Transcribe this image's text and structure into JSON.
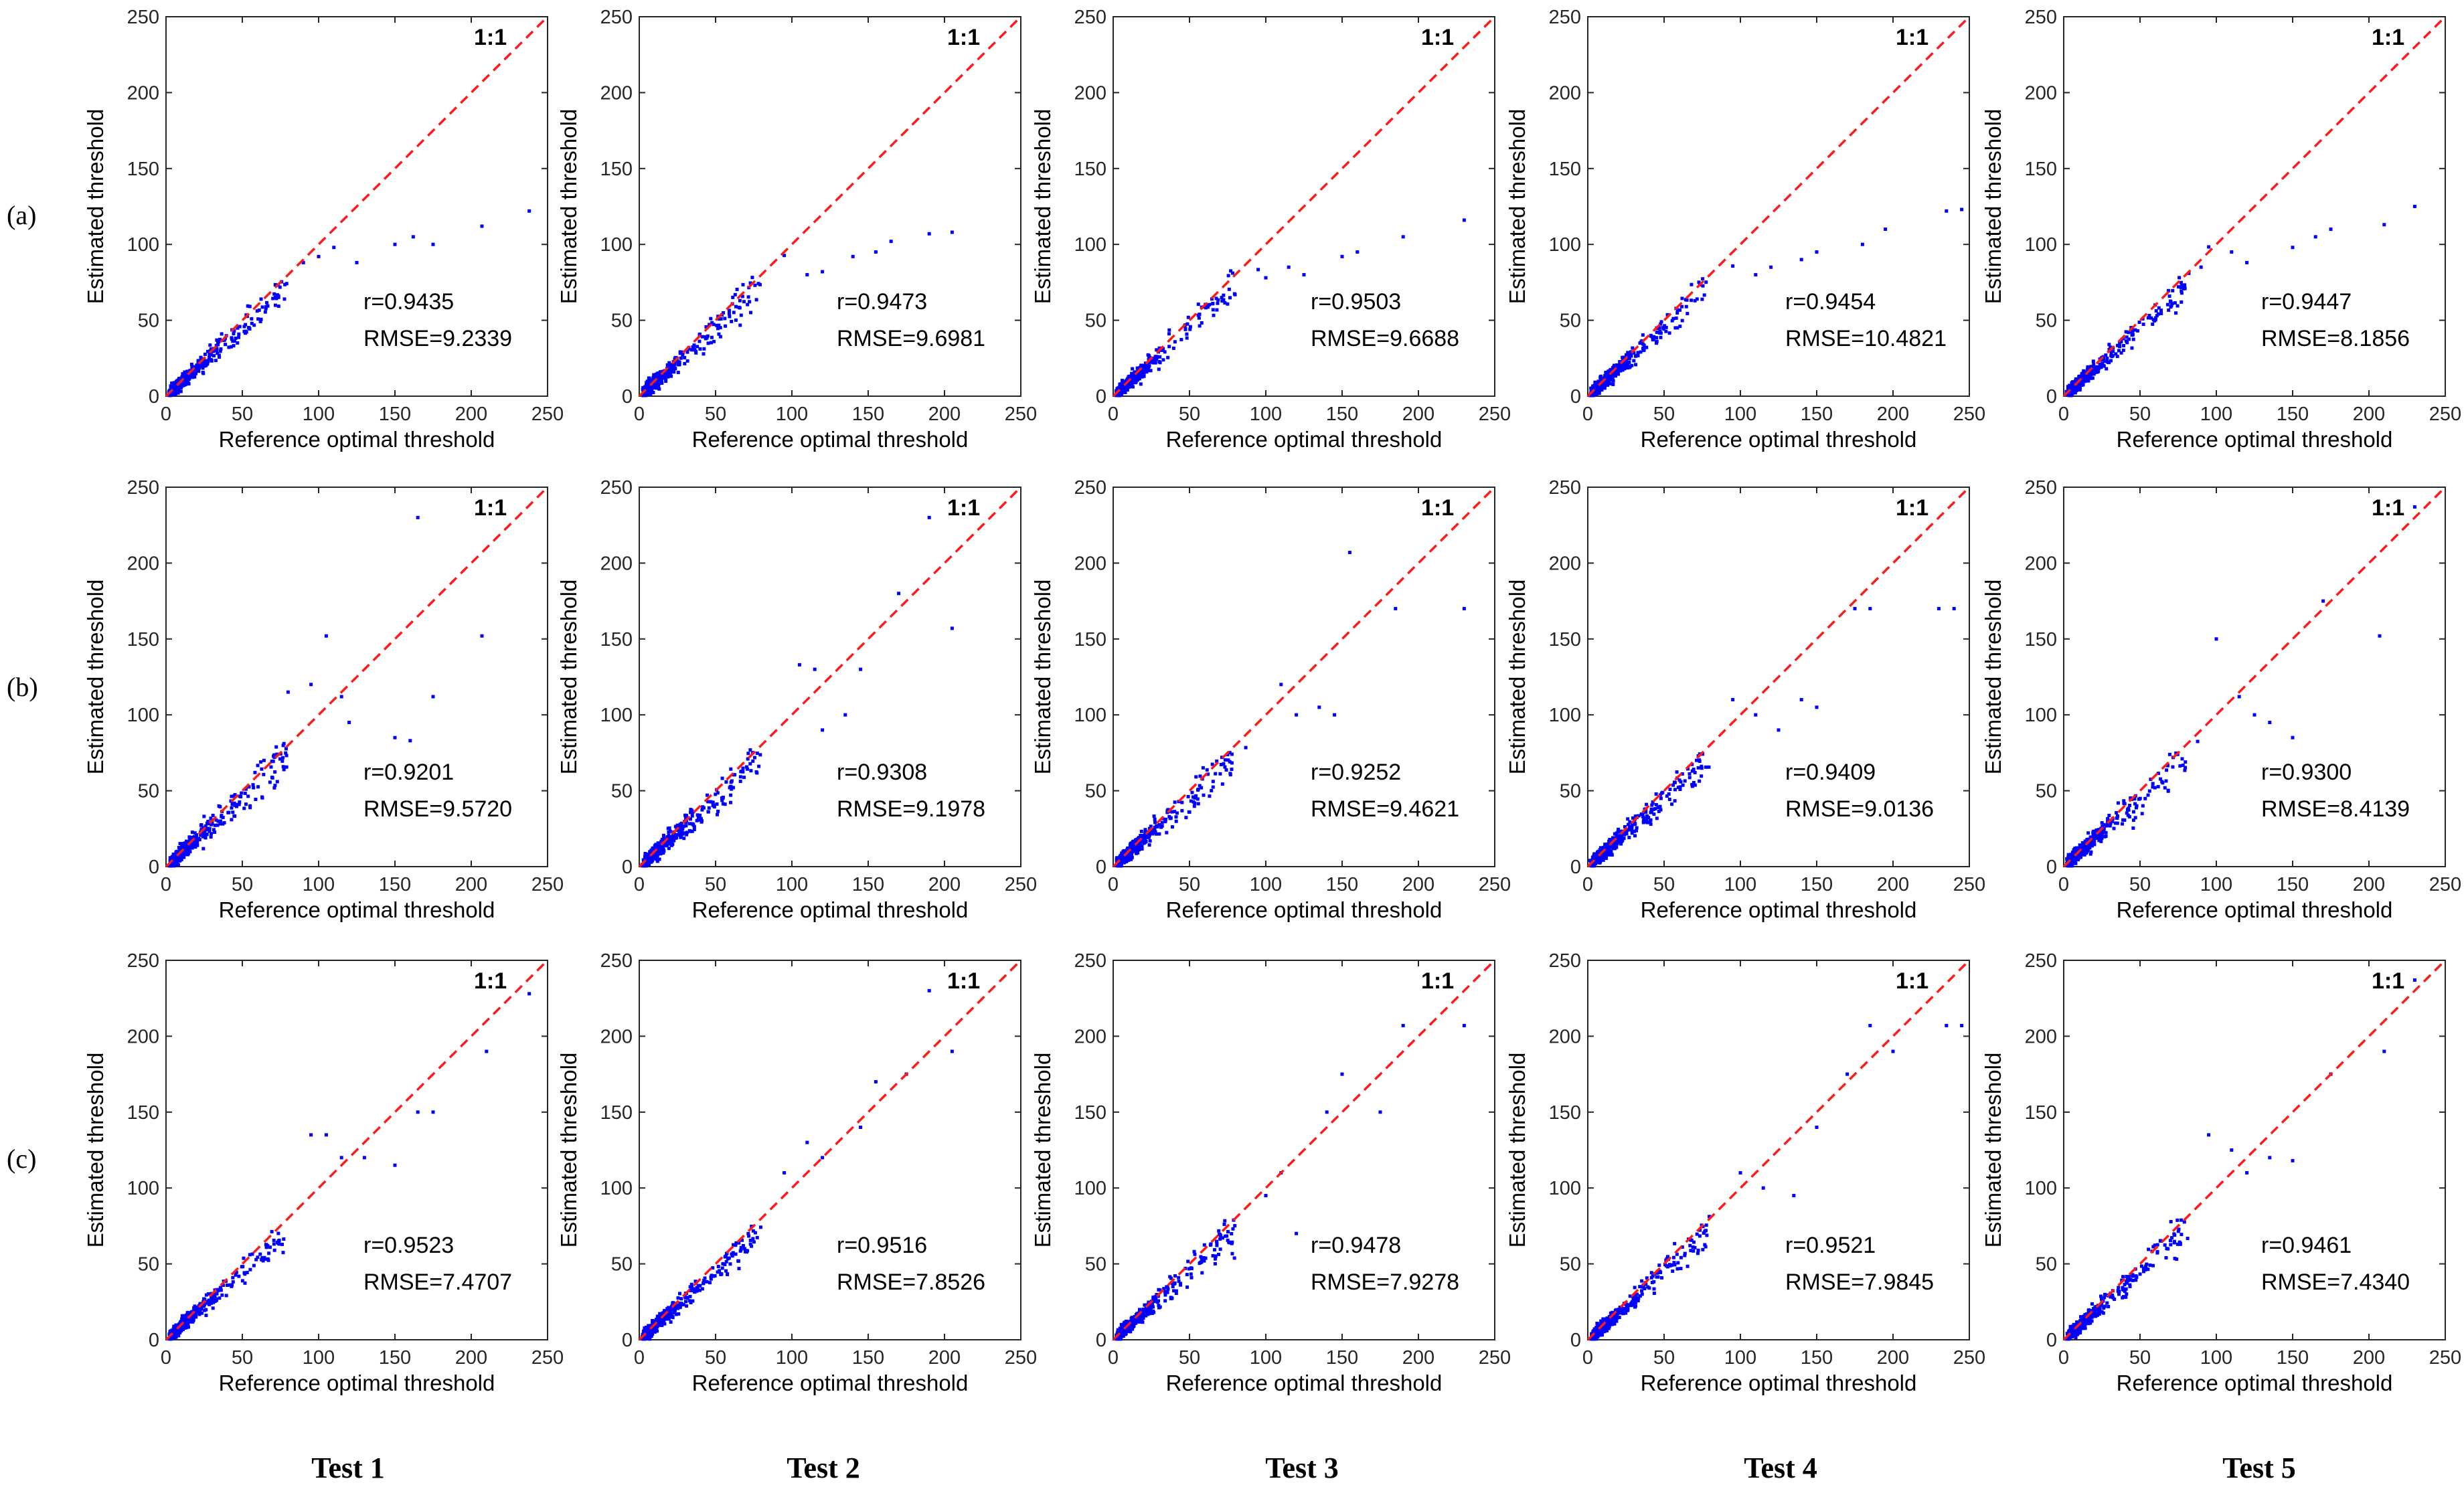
{
  "figure": {
    "row_labels": [
      "(a)",
      "(b)",
      "(c)"
    ],
    "column_labels": [
      "Test 1",
      "Test 2",
      "Test 3",
      "Test 4",
      "Test 5"
    ],
    "colors": {
      "points": "#0000ff",
      "identity_line": "#ff1a1a",
      "axes": "#262626"
    }
  },
  "chart_data": [
    {
      "type": "scatter",
      "row": "(a)",
      "test": "Test 1",
      "xlabel": "Reference optimal threshold",
      "ylabel": "Estimated threshold",
      "xlim": [
        0,
        250
      ],
      "ylim": [
        0,
        250
      ],
      "xticks": [
        0,
        50,
        100,
        150,
        200,
        250
      ],
      "yticks": [
        0,
        50,
        100,
        150,
        200,
        250
      ],
      "identity_label": "1:1",
      "r_text": "r=0.9435",
      "rmse_text": "RMSE=9.2339",
      "r": 0.9435,
      "rmse": 9.2339,
      "outliers": [
        [
          90,
          88
        ],
        [
          100,
          92
        ],
        [
          110,
          98
        ],
        [
          125,
          88
        ],
        [
          150,
          100
        ],
        [
          162,
          105
        ],
        [
          175,
          100
        ],
        [
          207,
          112
        ],
        [
          238,
          122
        ]
      ]
    },
    {
      "type": "scatter",
      "row": "(a)",
      "test": "Test 2",
      "xlabel": "Reference optimal threshold",
      "ylabel": "Estimated threshold",
      "xlim": [
        0,
        250
      ],
      "ylim": [
        0,
        250
      ],
      "xticks": [
        0,
        50,
        100,
        150,
        200,
        250
      ],
      "yticks": [
        0,
        50,
        100,
        150,
        200,
        250
      ],
      "identity_label": "1:1",
      "r_text": "r=0.9473",
      "rmse_text": "RMSE=9.6981",
      "r": 0.9473,
      "rmse": 9.6981,
      "outliers": [
        [
          110,
          80
        ],
        [
          120,
          82
        ],
        [
          140,
          92
        ],
        [
          155,
          95
        ],
        [
          165,
          102
        ],
        [
          190,
          107
        ],
        [
          205,
          108
        ]
      ]
    },
    {
      "type": "scatter",
      "row": "(a)",
      "test": "Test 3",
      "xlabel": "Reference optimal threshold",
      "ylabel": "Estimated threshold",
      "xlim": [
        0,
        250
      ],
      "ylim": [
        0,
        250
      ],
      "xticks": [
        0,
        50,
        100,
        150,
        200,
        250
      ],
      "yticks": [
        0,
        50,
        100,
        150,
        200,
        250
      ],
      "identity_label": "1:1",
      "r_text": "r=0.9503",
      "rmse_text": "RMSE=9.6688",
      "r": 0.9503,
      "rmse": 9.6688,
      "outliers": [
        [
          100,
          78
        ],
        [
          115,
          85
        ],
        [
          125,
          80
        ],
        [
          150,
          92
        ],
        [
          160,
          95
        ],
        [
          190,
          105
        ],
        [
          230,
          116
        ]
      ]
    },
    {
      "type": "scatter",
      "row": "(a)",
      "test": "Test 4",
      "xlabel": "Reference optimal threshold",
      "ylabel": "Estimated threshold",
      "xlim": [
        0,
        250
      ],
      "ylim": [
        0,
        250
      ],
      "xticks": [
        0,
        50,
        100,
        150,
        200,
        250
      ],
      "yticks": [
        0,
        50,
        100,
        150,
        200,
        250
      ],
      "identity_label": "1:1",
      "r_text": "r=0.9454",
      "rmse_text": "RMSE=10.4821",
      "r": 0.9454,
      "rmse": 10.4821,
      "outliers": [
        [
          110,
          80
        ],
        [
          120,
          85
        ],
        [
          140,
          90
        ],
        [
          150,
          95
        ],
        [
          180,
          100
        ],
        [
          195,
          110
        ],
        [
          235,
          122
        ],
        [
          245,
          123
        ]
      ]
    },
    {
      "type": "scatter",
      "row": "(a)",
      "test": "Test 5",
      "xlabel": "Reference optimal threshold",
      "ylabel": "Estimated threshold",
      "xlim": [
        0,
        250
      ],
      "ylim": [
        0,
        250
      ],
      "xticks": [
        0,
        50,
        100,
        150,
        200,
        250
      ],
      "yticks": [
        0,
        50,
        100,
        150,
        200,
        250
      ],
      "identity_label": "1:1",
      "r_text": "r=0.9447",
      "rmse_text": "RMSE=8.1856",
      "r": 0.9447,
      "rmse": 8.1856,
      "outliers": [
        [
          90,
          85
        ],
        [
          110,
          95
        ],
        [
          120,
          88
        ],
        [
          150,
          98
        ],
        [
          165,
          105
        ],
        [
          175,
          110
        ],
        [
          210,
          113
        ],
        [
          230,
          125
        ]
      ]
    },
    {
      "type": "scatter",
      "row": "(b)",
      "test": "Test 1",
      "xlabel": "Reference optimal threshold",
      "ylabel": "Estimated threshold",
      "xlim": [
        0,
        250
      ],
      "ylim": [
        0,
        250
      ],
      "xticks": [
        0,
        50,
        100,
        150,
        200,
        250
      ],
      "yticks": [
        0,
        50,
        100,
        150,
        200,
        250
      ],
      "identity_label": "1:1",
      "r_text": "r=0.9201",
      "rmse_text": "RMSE=9.5720",
      "r": 0.9201,
      "rmse": 9.572,
      "outliers": [
        [
          80,
          115
        ],
        [
          95,
          120
        ],
        [
          105,
          152
        ],
        [
          115,
          112
        ],
        [
          120,
          95
        ],
        [
          150,
          85
        ],
        [
          160,
          83
        ],
        [
          165,
          230
        ],
        [
          175,
          112
        ],
        [
          207,
          152
        ]
      ]
    },
    {
      "type": "scatter",
      "row": "(b)",
      "test": "Test 2",
      "xlabel": "Reference optimal threshold",
      "ylabel": "Estimated threshold",
      "xlim": [
        0,
        250
      ],
      "ylim": [
        0,
        250
      ],
      "xticks": [
        0,
        50,
        100,
        150,
        200,
        250
      ],
      "yticks": [
        0,
        50,
        100,
        150,
        200,
        250
      ],
      "identity_label": "1:1",
      "r_text": "r=0.9308",
      "rmse_text": "RMSE=9.1978",
      "r": 0.9308,
      "rmse": 9.1978,
      "outliers": [
        [
          105,
          133
        ],
        [
          115,
          130
        ],
        [
          120,
          90
        ],
        [
          135,
          100
        ],
        [
          145,
          130
        ],
        [
          170,
          180
        ],
        [
          190,
          230
        ],
        [
          205,
          157
        ]
      ]
    },
    {
      "type": "scatter",
      "row": "(b)",
      "test": "Test 3",
      "xlabel": "Reference optimal threshold",
      "ylabel": "Estimated threshold",
      "xlim": [
        0,
        250
      ],
      "ylim": [
        0,
        250
      ],
      "xticks": [
        0,
        50,
        100,
        150,
        200,
        250
      ],
      "yticks": [
        0,
        50,
        100,
        150,
        200,
        250
      ],
      "identity_label": "1:1",
      "r_text": "r=0.9252",
      "rmse_text": "RMSE=9.4621",
      "r": 0.9252,
      "rmse": 9.4621,
      "outliers": [
        [
          110,
          120
        ],
        [
          120,
          100
        ],
        [
          135,
          105
        ],
        [
          145,
          100
        ],
        [
          155,
          207
        ],
        [
          185,
          170
        ],
        [
          230,
          170
        ]
      ]
    },
    {
      "type": "scatter",
      "row": "(b)",
      "test": "Test 4",
      "xlabel": "Reference optimal threshold",
      "ylabel": "Estimated threshold",
      "xlim": [
        0,
        250
      ],
      "ylim": [
        0,
        250
      ],
      "xticks": [
        0,
        50,
        100,
        150,
        200,
        250
      ],
      "yticks": [
        0,
        50,
        100,
        150,
        200,
        250
      ],
      "identity_label": "1:1",
      "r_text": "r=0.9409",
      "rmse_text": "RMSE=9.0136",
      "r": 0.9409,
      "rmse": 9.0136,
      "outliers": [
        [
          95,
          110
        ],
        [
          110,
          100
        ],
        [
          125,
          90
        ],
        [
          140,
          110
        ],
        [
          150,
          105
        ],
        [
          175,
          170
        ],
        [
          185,
          170
        ],
        [
          230,
          170
        ],
        [
          240,
          170
        ]
      ]
    },
    {
      "type": "scatter",
      "row": "(b)",
      "test": "Test 5",
      "xlabel": "Reference optimal threshold",
      "ylabel": "Estimated threshold",
      "xlim": [
        0,
        250
      ],
      "ylim": [
        0,
        250
      ],
      "xticks": [
        0,
        50,
        100,
        150,
        200,
        250
      ],
      "yticks": [
        0,
        50,
        100,
        150,
        200,
        250
      ],
      "identity_label": "1:1",
      "r_text": "r=0.9300",
      "rmse_text": "RMSE=8.4139",
      "r": 0.93,
      "rmse": 8.4139,
      "outliers": [
        [
          100,
          150
        ],
        [
          115,
          112
        ],
        [
          125,
          100
        ],
        [
          135,
          95
        ],
        [
          150,
          85
        ],
        [
          170,
          175
        ],
        [
          207,
          152
        ],
        [
          230,
          237
        ]
      ]
    },
    {
      "type": "scatter",
      "row": "(c)",
      "test": "Test 1",
      "xlabel": "Reference optimal threshold",
      "ylabel": "Estimated threshold",
      "xlim": [
        0,
        250
      ],
      "ylim": [
        0,
        250
      ],
      "xticks": [
        0,
        50,
        100,
        150,
        200,
        250
      ],
      "yticks": [
        0,
        50,
        100,
        150,
        200,
        250
      ],
      "identity_label": "1:1",
      "r_text": "r=0.9523",
      "rmse_text": "RMSE=7.4707",
      "r": 0.9523,
      "rmse": 7.4707,
      "outliers": [
        [
          95,
          135
        ],
        [
          105,
          135
        ],
        [
          115,
          120
        ],
        [
          130,
          120
        ],
        [
          150,
          115
        ],
        [
          165,
          150
        ],
        [
          175,
          150
        ],
        [
          210,
          190
        ],
        [
          238,
          228
        ]
      ]
    },
    {
      "type": "scatter",
      "row": "(c)",
      "test": "Test 2",
      "xlabel": "Reference optimal threshold",
      "ylabel": "Estimated threshold",
      "xlim": [
        0,
        250
      ],
      "ylim": [
        0,
        250
      ],
      "xticks": [
        0,
        50,
        100,
        150,
        200,
        250
      ],
      "yticks": [
        0,
        50,
        100,
        150,
        200,
        250
      ],
      "identity_label": "1:1",
      "r_text": "r=0.9516",
      "rmse_text": "RMSE=7.8526",
      "r": 0.9516,
      "rmse": 7.8526,
      "outliers": [
        [
          95,
          110
        ],
        [
          110,
          130
        ],
        [
          120,
          120
        ],
        [
          145,
          140
        ],
        [
          155,
          170
        ],
        [
          175,
          175
        ],
        [
          190,
          230
        ],
        [
          205,
          190
        ]
      ]
    },
    {
      "type": "scatter",
      "row": "(c)",
      "test": "Test 3",
      "xlabel": "Reference optimal threshold",
      "ylabel": "Estimated threshold",
      "xlim": [
        0,
        250
      ],
      "ylim": [
        0,
        250
      ],
      "xticks": [
        0,
        50,
        100,
        150,
        200,
        250
      ],
      "yticks": [
        0,
        50,
        100,
        150,
        200,
        250
      ],
      "identity_label": "1:1",
      "r_text": "r=0.9478",
      "rmse_text": "RMSE=7.9278",
      "r": 0.9478,
      "rmse": 7.9278,
      "outliers": [
        [
          100,
          95
        ],
        [
          110,
          110
        ],
        [
          120,
          70
        ],
        [
          140,
          150
        ],
        [
          150,
          175
        ],
        [
          175,
          150
        ],
        [
          190,
          207
        ],
        [
          230,
          207
        ]
      ]
    },
    {
      "type": "scatter",
      "row": "(c)",
      "test": "Test 4",
      "xlabel": "Reference optimal threshold",
      "ylabel": "Estimated threshold",
      "xlim": [
        0,
        250
      ],
      "ylim": [
        0,
        250
      ],
      "xticks": [
        0,
        50,
        100,
        150,
        200,
        250
      ],
      "yticks": [
        0,
        50,
        100,
        150,
        200,
        250
      ],
      "identity_label": "1:1",
      "r_text": "r=0.9521",
      "rmse_text": "RMSE=7.9845",
      "r": 0.9521,
      "rmse": 7.9845,
      "outliers": [
        [
          100,
          110
        ],
        [
          115,
          100
        ],
        [
          135,
          95
        ],
        [
          150,
          140
        ],
        [
          170,
          175
        ],
        [
          185,
          207
        ],
        [
          200,
          190
        ],
        [
          235,
          207
        ],
        [
          245,
          207
        ]
      ]
    },
    {
      "type": "scatter",
      "row": "(c)",
      "test": "Test 5",
      "xlabel": "Reference optimal threshold",
      "ylabel": "Estimated threshold",
      "xlim": [
        0,
        250
      ],
      "ylim": [
        0,
        250
      ],
      "xticks": [
        0,
        50,
        100,
        150,
        200,
        250
      ],
      "yticks": [
        0,
        50,
        100,
        150,
        200,
        250
      ],
      "identity_label": "1:1",
      "r_text": "r=0.9461",
      "rmse_text": "RMSE=7.4340",
      "r": 0.9461,
      "rmse": 7.434,
      "outliers": [
        [
          95,
          135
        ],
        [
          110,
          125
        ],
        [
          120,
          110
        ],
        [
          135,
          120
        ],
        [
          150,
          118
        ],
        [
          175,
          175
        ],
        [
          210,
          190
        ],
        [
          230,
          237
        ]
      ]
    }
  ]
}
